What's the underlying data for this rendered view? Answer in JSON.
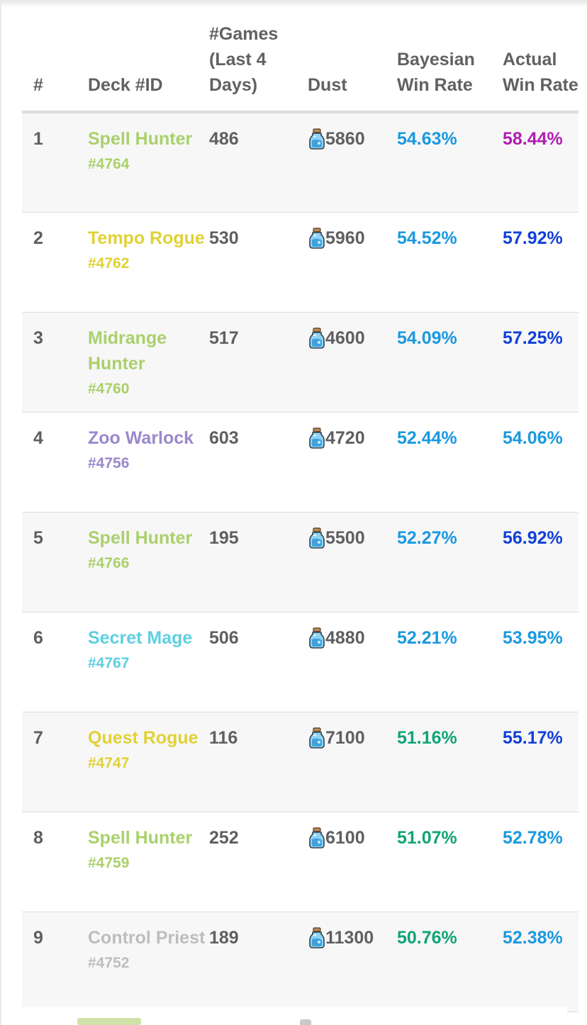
{
  "headers": {
    "rank": "#",
    "deck": "Deck #ID",
    "games": "#Games (Last 4 Days)",
    "dust": "Dust",
    "bayesian": "Bayesian Win Rate",
    "actual": "Actual Win Rate"
  },
  "icons": {
    "dust": "dust-vial-icon"
  },
  "rows": [
    {
      "rank": "1",
      "name": "Spell Hunter",
      "id": "#4764",
      "games": "486",
      "dust": "5860",
      "bayesian": "54.63%",
      "actual": "58.44%",
      "class_color": "#a9d16b",
      "bayes_color": "#1a99e0",
      "actual_color": "#b11db1"
    },
    {
      "rank": "2",
      "name": "Tempo Rogue",
      "id": "#4762",
      "games": "530",
      "dust": "5960",
      "bayesian": "54.52%",
      "actual": "57.92%",
      "class_color": "#e1d135",
      "bayes_color": "#1a99e0",
      "actual_color": "#1140d8"
    },
    {
      "rank": "3",
      "name": "Midrange Hunter",
      "id": "#4760",
      "games": "517",
      "dust": "4600",
      "bayesian": "54.09%",
      "actual": "57.25%",
      "class_color": "#a9d16b",
      "bayes_color": "#1a99e0",
      "actual_color": "#1140d8"
    },
    {
      "rank": "4",
      "name": "Zoo Warlock",
      "id": "#4756",
      "games": "603",
      "dust": "4720",
      "bayesian": "52.44%",
      "actual": "54.06%",
      "class_color": "#9a88cc",
      "bayes_color": "#1a99e0",
      "actual_color": "#1a99e0"
    },
    {
      "rank": "5",
      "name": "Spell Hunter",
      "id": "#4766",
      "games": "195",
      "dust": "5500",
      "bayesian": "52.27%",
      "actual": "56.92%",
      "class_color": "#a9d16b",
      "bayes_color": "#1a99e0",
      "actual_color": "#1140d8"
    },
    {
      "rank": "6",
      "name": "Secret Mage",
      "id": "#4767",
      "games": "506",
      "dust": "4880",
      "bayesian": "52.21%",
      "actual": "53.95%",
      "class_color": "#5ecfe0",
      "bayes_color": "#1a99e0",
      "actual_color": "#1a99e0"
    },
    {
      "rank": "7",
      "name": "Quest Rogue",
      "id": "#4747",
      "games": "116",
      "dust": "7100",
      "bayesian": "51.16%",
      "actual": "55.17%",
      "class_color": "#e1d135",
      "bayes_color": "#10a476",
      "actual_color": "#1140d8"
    },
    {
      "rank": "8",
      "name": "Spell Hunter",
      "id": "#4759",
      "games": "252",
      "dust": "6100",
      "bayesian": "51.07%",
      "actual": "52.78%",
      "class_color": "#a9d16b",
      "bayes_color": "#10a476",
      "actual_color": "#1a99e0"
    },
    {
      "rank": "9",
      "name": "Control Priest",
      "id": "#4752",
      "games": "189",
      "dust": "11300",
      "bayesian": "50.76%",
      "actual": "52.38%",
      "class_color": "#bdbdbd",
      "bayes_color": "#10a476",
      "actual_color": "#1a99e0"
    }
  ]
}
